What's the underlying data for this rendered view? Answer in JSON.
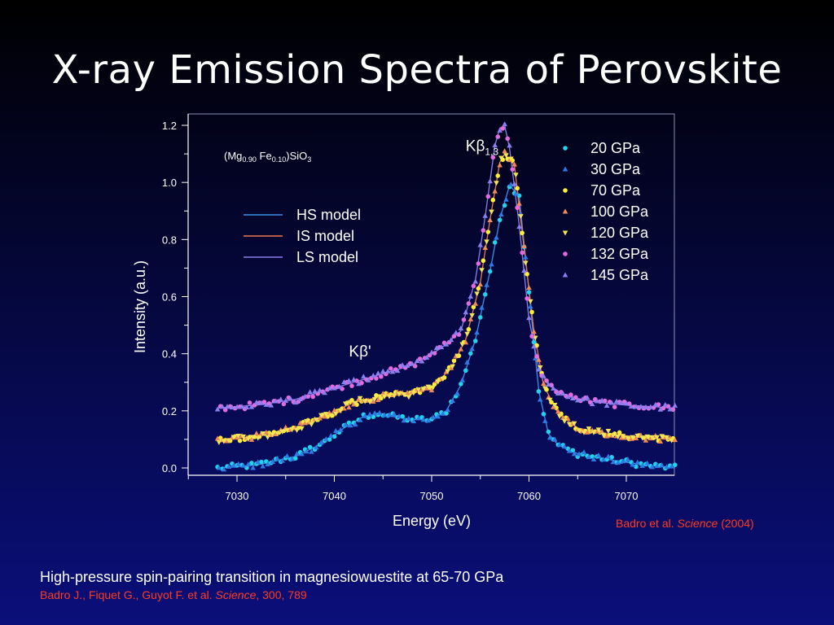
{
  "slide": {
    "title": "X-ray Emission Spectra of Perovskite",
    "figure_credit": {
      "authors": "Badro et al.",
      "journal": "Science",
      "year": "(2004)"
    },
    "caption": "High-pressure spin-pairing transition in magnesiowuestite at 65-70 GPa",
    "caption_ref": {
      "authors": "Badro J., Fiquet G., Guyot F. et al.",
      "journal": "Science",
      "details": ", 300, 789"
    }
  },
  "colors": {
    "background_top": "#000000",
    "background_bottom": "#0a0f7a",
    "axis": "#ffffff",
    "reference_text": "#ff3b1f"
  },
  "chart_data": {
    "type": "scatter",
    "xlabel": "Energy (eV)",
    "ylabel": "Intensity (a.u.)",
    "xlim": [
      7025,
      7075
    ],
    "ylim": [
      -0.02,
      1.24
    ],
    "x_ticks": [
      7030,
      7040,
      7050,
      7060,
      7070
    ],
    "y_ticks": [
      "0.0",
      "0.2",
      "0.4",
      "0.6",
      "0.8",
      "1.0",
      "1.2"
    ],
    "y_tick_values": [
      0.0,
      0.2,
      0.4,
      0.6,
      0.8,
      1.0,
      1.2
    ],
    "grid": false,
    "sample_label": {
      "base": "(Mg",
      "sub1": "0.90",
      "mid": " Fe",
      "sub2": "0.10",
      "end": ")SiO",
      "sub3": "3"
    },
    "annotations": [
      {
        "main": "Kβ",
        "sub": "1,3",
        "x": 7053.5,
        "y": 1.11
      },
      {
        "main": "Kβ'",
        "sub": "",
        "x": 7041.5,
        "y": 0.39
      }
    ],
    "legend_position": "top-right",
    "series": [
      {
        "name": "20 GPa",
        "marker": "circle",
        "color": "#22d3ee",
        "group": "HS"
      },
      {
        "name": "30 GPa",
        "marker": "triangle-up",
        "color": "#2e7be6",
        "group": "HS"
      },
      {
        "name": "70 GPa",
        "marker": "circle",
        "color": "#ffee33",
        "group": "IS"
      },
      {
        "name": "100 GPa",
        "marker": "triangle-up",
        "color": "#f08a5a",
        "group": "IS"
      },
      {
        "name": "120 GPa",
        "marker": "triangle-down",
        "color": "#f2e35a",
        "group": "IS"
      },
      {
        "name": "132 GPa",
        "marker": "circle",
        "color": "#e26be0",
        "group": "LS"
      },
      {
        "name": "145 GPa",
        "marker": "triangle-up",
        "color": "#8b7ef0",
        "group": "LS"
      }
    ],
    "model_lines": [
      {
        "name": "HS model",
        "color": "#3d8ee8",
        "x": [
          7028,
          7032,
          7036,
          7039,
          7041,
          7043,
          7044.5,
          7046,
          7048,
          7050,
          7051.5,
          7053,
          7054.5,
          7056,
          7057,
          7058,
          7059,
          7060,
          7061,
          7062,
          7063,
          7065,
          7068,
          7072,
          7075
        ],
        "y": [
          0.0,
          0.01,
          0.04,
          0.09,
          0.14,
          0.18,
          0.19,
          0.18,
          0.17,
          0.17,
          0.2,
          0.29,
          0.45,
          0.69,
          0.87,
          0.99,
          0.95,
          0.62,
          0.27,
          0.12,
          0.08,
          0.05,
          0.03,
          0.01,
          0.0
        ]
      },
      {
        "name": "IS model",
        "color": "#f07a4a",
        "x": [
          7028,
          7032,
          7036,
          7039,
          7042,
          7045,
          7048,
          7050,
          7052,
          7053.5,
          7055,
          7056,
          7057,
          7057.5,
          7058.5,
          7059.5,
          7060.5,
          7061.5,
          7063,
          7065,
          7068,
          7072,
          7075
        ],
        "y": [
          0.1,
          0.11,
          0.14,
          0.18,
          0.23,
          0.25,
          0.26,
          0.28,
          0.35,
          0.45,
          0.65,
          0.87,
          1.07,
          1.1,
          1.06,
          0.77,
          0.48,
          0.29,
          0.19,
          0.14,
          0.12,
          0.105,
          0.1
        ]
      },
      {
        "name": "LS model",
        "color": "#8a80ec",
        "x": [
          7028,
          7032,
          7036,
          7040,
          7044,
          7048,
          7051,
          7053,
          7054.5,
          7055.5,
          7056.5,
          7057,
          7057.5,
          7058,
          7059,
          7060,
          7061,
          7062,
          7064,
          7067,
          7070,
          7075
        ],
        "y": [
          0.21,
          0.22,
          0.24,
          0.28,
          0.32,
          0.36,
          0.42,
          0.48,
          0.66,
          0.88,
          1.13,
          1.19,
          1.2,
          1.12,
          0.85,
          0.52,
          0.35,
          0.29,
          0.25,
          0.23,
          0.22,
          0.21
        ]
      }
    ]
  }
}
